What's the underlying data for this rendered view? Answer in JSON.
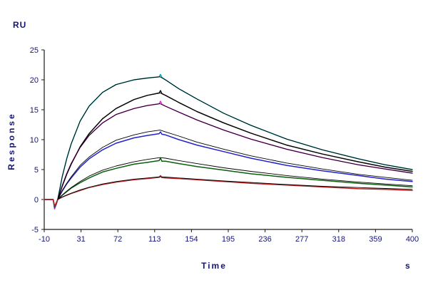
{
  "chart_data": {
    "type": "line",
    "title": "",
    "ylabel": "Response",
    "y_unit": "RU",
    "xlabel": "Time",
    "x_unit": "s",
    "xlim": [
      -10,
      400
    ],
    "ylim": [
      -5,
      25
    ],
    "x_ticks": [
      -10,
      31,
      72,
      113,
      154,
      195,
      236,
      277,
      318,
      359,
      400
    ],
    "y_ticks": [
      -5,
      0,
      5,
      10,
      15,
      20,
      25
    ],
    "grid": false,
    "legend_position": "none",
    "axis_color": "#1a1a1a",
    "label_color": "#14147a",
    "description": "SPR sensorgram: six concentration traces (association ~5-120 s, dissociation 120-400 s) each overlaid with a black kinetic fit line",
    "series": [
      {
        "name": "trace-cyan",
        "role": "measured",
        "color": "#00AAAF",
        "width": 1.5,
        "points": [
          [
            -10,
            0
          ],
          [
            0,
            0
          ],
          [
            1.5,
            -1.6
          ],
          [
            3.5,
            -0.8
          ],
          [
            5,
            0
          ],
          [
            10,
            3.8
          ],
          [
            15,
            6.8
          ],
          [
            20,
            9.3
          ],
          [
            30,
            13.1
          ],
          [
            40,
            15.6
          ],
          [
            55,
            17.9
          ],
          [
            70,
            19.2
          ],
          [
            90,
            20.0
          ],
          [
            105,
            20.3
          ],
          [
            118,
            20.5
          ],
          [
            119.5,
            20.9
          ],
          [
            121,
            20.4
          ],
          [
            125,
            20.0
          ],
          [
            140,
            18.5
          ],
          [
            160,
            16.8
          ],
          [
            190,
            14.4
          ],
          [
            220,
            12.4
          ],
          [
            260,
            10.1
          ],
          [
            300,
            8.3
          ],
          [
            340,
            6.8
          ],
          [
            370,
            5.8
          ],
          [
            400,
            5.0
          ]
        ]
      },
      {
        "name": "trace-black",
        "role": "measured",
        "color": "#111111",
        "width": 1.5,
        "points": [
          [
            -10,
            0
          ],
          [
            0,
            0
          ],
          [
            1.5,
            -1.4
          ],
          [
            3.5,
            -0.7
          ],
          [
            5,
            0
          ],
          [
            10,
            2.2
          ],
          [
            15,
            4.2
          ],
          [
            20,
            5.9
          ],
          [
            30,
            8.8
          ],
          [
            40,
            11.0
          ],
          [
            55,
            13.5
          ],
          [
            70,
            15.2
          ],
          [
            90,
            16.7
          ],
          [
            105,
            17.4
          ],
          [
            118,
            17.8
          ],
          [
            119.5,
            18.2
          ],
          [
            121,
            17.7
          ],
          [
            125,
            17.4
          ],
          [
            140,
            16.2
          ],
          [
            160,
            14.7
          ],
          [
            190,
            12.8
          ],
          [
            220,
            11.1
          ],
          [
            260,
            9.1
          ],
          [
            300,
            7.6
          ],
          [
            340,
            6.3
          ],
          [
            370,
            5.4
          ],
          [
            400,
            4.7
          ]
        ]
      },
      {
        "name": "trace-magenta",
        "role": "measured",
        "color": "#DD22DD",
        "width": 1.5,
        "points": [
          [
            -10,
            0
          ],
          [
            0,
            0
          ],
          [
            1.5,
            -1.5
          ],
          [
            3.5,
            -0.7
          ],
          [
            5,
            0
          ],
          [
            10,
            2.3
          ],
          [
            15,
            4.3
          ],
          [
            20,
            6.0
          ],
          [
            30,
            8.7
          ],
          [
            40,
            10.7
          ],
          [
            55,
            12.8
          ],
          [
            70,
            14.2
          ],
          [
            90,
            15.2
          ],
          [
            105,
            15.7
          ],
          [
            118,
            16.0
          ],
          [
            119.5,
            16.4
          ],
          [
            121,
            15.9
          ],
          [
            125,
            15.6
          ],
          [
            140,
            14.6
          ],
          [
            160,
            13.3
          ],
          [
            190,
            11.6
          ],
          [
            220,
            10.1
          ],
          [
            260,
            8.4
          ],
          [
            300,
            7.0
          ],
          [
            340,
            5.8
          ],
          [
            370,
            5.1
          ],
          [
            400,
            4.4
          ]
        ]
      },
      {
        "name": "trace-blue",
        "role": "measured",
        "color": "#2222CC",
        "width": 1.5,
        "points": [
          [
            -10,
            0
          ],
          [
            0,
            0
          ],
          [
            1.5,
            -1.3
          ],
          [
            3.5,
            -0.6
          ],
          [
            5,
            0
          ],
          [
            10,
            1.4
          ],
          [
            15,
            2.6
          ],
          [
            20,
            3.6
          ],
          [
            30,
            5.4
          ],
          [
            40,
            6.8
          ],
          [
            55,
            8.3
          ],
          [
            70,
            9.4
          ],
          [
            90,
            10.3
          ],
          [
            105,
            10.7
          ],
          [
            118,
            11.0
          ],
          [
            119.5,
            11.3
          ],
          [
            121,
            10.9
          ],
          [
            125,
            10.8
          ],
          [
            140,
            10.0
          ],
          [
            160,
            9.1
          ],
          [
            190,
            8.0
          ],
          [
            220,
            6.9
          ],
          [
            260,
            5.7
          ],
          [
            300,
            4.8
          ],
          [
            340,
            4.0
          ],
          [
            370,
            3.4
          ],
          [
            400,
            3.0
          ]
        ]
      },
      {
        "name": "trace-green",
        "role": "measured",
        "color": "#0A5D0A",
        "width": 1.5,
        "points": [
          [
            -10,
            0
          ],
          [
            0,
            0
          ],
          [
            1.5,
            -1.2
          ],
          [
            3.5,
            -0.6
          ],
          [
            5,
            0
          ],
          [
            10,
            0.7
          ],
          [
            15,
            1.3
          ],
          [
            20,
            1.9
          ],
          [
            30,
            2.8
          ],
          [
            40,
            3.6
          ],
          [
            55,
            4.6
          ],
          [
            70,
            5.2
          ],
          [
            90,
            5.9
          ],
          [
            105,
            6.2
          ],
          [
            118,
            6.5
          ],
          [
            119.5,
            6.9
          ],
          [
            121,
            6.4
          ],
          [
            125,
            6.4
          ],
          [
            140,
            6.0
          ],
          [
            160,
            5.5
          ],
          [
            190,
            4.9
          ],
          [
            220,
            4.3
          ],
          [
            260,
            3.7
          ],
          [
            300,
            3.2
          ],
          [
            340,
            2.7
          ],
          [
            370,
            2.4
          ],
          [
            400,
            2.1
          ]
        ]
      },
      {
        "name": "trace-red",
        "role": "measured",
        "color": "#C02020",
        "width": 1.5,
        "points": [
          [
            -10,
            0
          ],
          [
            0,
            0
          ],
          [
            1.5,
            -1.1
          ],
          [
            3.5,
            -0.5
          ],
          [
            5,
            0
          ],
          [
            10,
            0.4
          ],
          [
            15,
            0.7
          ],
          [
            20,
            1.0
          ],
          [
            30,
            1.5
          ],
          [
            40,
            2.0
          ],
          [
            55,
            2.5
          ],
          [
            70,
            2.9
          ],
          [
            90,
            3.3
          ],
          [
            105,
            3.5
          ],
          [
            118,
            3.7
          ],
          [
            119.5,
            4.0
          ],
          [
            121,
            3.65
          ],
          [
            125,
            3.6
          ],
          [
            140,
            3.5
          ],
          [
            160,
            3.3
          ],
          [
            190,
            3.0
          ],
          [
            220,
            2.7
          ],
          [
            260,
            2.4
          ],
          [
            300,
            2.1
          ],
          [
            340,
            1.8
          ],
          [
            370,
            1.7
          ],
          [
            400,
            1.5
          ]
        ]
      },
      {
        "name": "fit-cyan",
        "role": "fit",
        "color": "#000000",
        "width": 0.9,
        "points": [
          [
            5,
            0
          ],
          [
            10,
            3.8
          ],
          [
            15,
            6.8
          ],
          [
            20,
            9.3
          ],
          [
            30,
            13.1
          ],
          [
            40,
            15.6
          ],
          [
            55,
            17.9
          ],
          [
            70,
            19.2
          ],
          [
            90,
            20.0
          ],
          [
            105,
            20.3
          ],
          [
            119,
            20.5
          ],
          [
            125,
            20.0
          ],
          [
            140,
            18.5
          ],
          [
            160,
            16.8
          ],
          [
            190,
            14.4
          ],
          [
            220,
            12.4
          ],
          [
            260,
            10.1
          ],
          [
            300,
            8.3
          ],
          [
            340,
            6.8
          ],
          [
            370,
            5.8
          ],
          [
            400,
            5.0
          ]
        ]
      },
      {
        "name": "fit-black",
        "role": "fit",
        "color": "#000000",
        "width": 0.9,
        "points": [
          [
            5,
            0
          ],
          [
            10,
            2.2
          ],
          [
            15,
            4.2
          ],
          [
            20,
            5.9
          ],
          [
            30,
            8.8
          ],
          [
            40,
            11.0
          ],
          [
            55,
            13.5
          ],
          [
            70,
            15.2
          ],
          [
            90,
            16.7
          ],
          [
            105,
            17.4
          ],
          [
            119,
            17.8
          ],
          [
            125,
            17.4
          ],
          [
            140,
            16.2
          ],
          [
            160,
            14.7
          ],
          [
            190,
            12.8
          ],
          [
            220,
            11.1
          ],
          [
            260,
            9.1
          ],
          [
            300,
            7.6
          ],
          [
            340,
            6.3
          ],
          [
            370,
            5.4
          ],
          [
            400,
            4.7
          ]
        ]
      },
      {
        "name": "fit-magenta",
        "role": "fit",
        "color": "#000000",
        "width": 0.9,
        "points": [
          [
            5,
            0
          ],
          [
            10,
            2.3
          ],
          [
            15,
            4.3
          ],
          [
            20,
            6.0
          ],
          [
            30,
            8.7
          ],
          [
            40,
            10.7
          ],
          [
            55,
            12.8
          ],
          [
            70,
            14.2
          ],
          [
            90,
            15.2
          ],
          [
            105,
            15.7
          ],
          [
            119,
            16.0
          ],
          [
            125,
            15.6
          ],
          [
            140,
            14.6
          ],
          [
            160,
            13.3
          ],
          [
            190,
            11.6
          ],
          [
            220,
            10.1
          ],
          [
            260,
            8.4
          ],
          [
            300,
            7.0
          ],
          [
            340,
            5.8
          ],
          [
            370,
            5.1
          ],
          [
            400,
            4.4
          ]
        ]
      },
      {
        "name": "fit-blue",
        "role": "fit",
        "color": "#000000",
        "width": 0.9,
        "points": [
          [
            5,
            0
          ],
          [
            10,
            1.5
          ],
          [
            15,
            2.7
          ],
          [
            20,
            3.8
          ],
          [
            30,
            5.7
          ],
          [
            40,
            7.1
          ],
          [
            55,
            8.7
          ],
          [
            70,
            9.9
          ],
          [
            90,
            10.8
          ],
          [
            105,
            11.3
          ],
          [
            119,
            11.6
          ],
          [
            125,
            11.3
          ],
          [
            140,
            10.6
          ],
          [
            160,
            9.6
          ],
          [
            190,
            8.4
          ],
          [
            220,
            7.3
          ],
          [
            260,
            6.1
          ],
          [
            300,
            5.1
          ],
          [
            340,
            4.2
          ],
          [
            370,
            3.7
          ],
          [
            400,
            3.2
          ]
        ]
      },
      {
        "name": "fit-green",
        "role": "fit",
        "color": "#000000",
        "width": 0.9,
        "points": [
          [
            5,
            0
          ],
          [
            10,
            0.75
          ],
          [
            15,
            1.4
          ],
          [
            20,
            2.0
          ],
          [
            30,
            3.0
          ],
          [
            40,
            3.9
          ],
          [
            55,
            4.9
          ],
          [
            70,
            5.6
          ],
          [
            90,
            6.3
          ],
          [
            105,
            6.7
          ],
          [
            119,
            7.0
          ],
          [
            125,
            6.9
          ],
          [
            140,
            6.5
          ],
          [
            160,
            6.0
          ],
          [
            190,
            5.3
          ],
          [
            220,
            4.7
          ],
          [
            260,
            4.0
          ],
          [
            300,
            3.4
          ],
          [
            340,
            2.9
          ],
          [
            370,
            2.6
          ],
          [
            400,
            2.3
          ]
        ]
      },
      {
        "name": "fit-red",
        "role": "fit",
        "color": "#000000",
        "width": 0.9,
        "points": [
          [
            5,
            0
          ],
          [
            10,
            0.4
          ],
          [
            15,
            0.75
          ],
          [
            20,
            1.05
          ],
          [
            30,
            1.6
          ],
          [
            40,
            2.05
          ],
          [
            55,
            2.6
          ],
          [
            70,
            3.0
          ],
          [
            90,
            3.4
          ],
          [
            105,
            3.6
          ],
          [
            119,
            3.8
          ],
          [
            125,
            3.75
          ],
          [
            140,
            3.6
          ],
          [
            160,
            3.4
          ],
          [
            190,
            3.1
          ],
          [
            220,
            2.85
          ],
          [
            260,
            2.5
          ],
          [
            300,
            2.2
          ],
          [
            340,
            2.0
          ],
          [
            370,
            1.85
          ],
          [
            400,
            1.7
          ]
        ]
      }
    ]
  }
}
